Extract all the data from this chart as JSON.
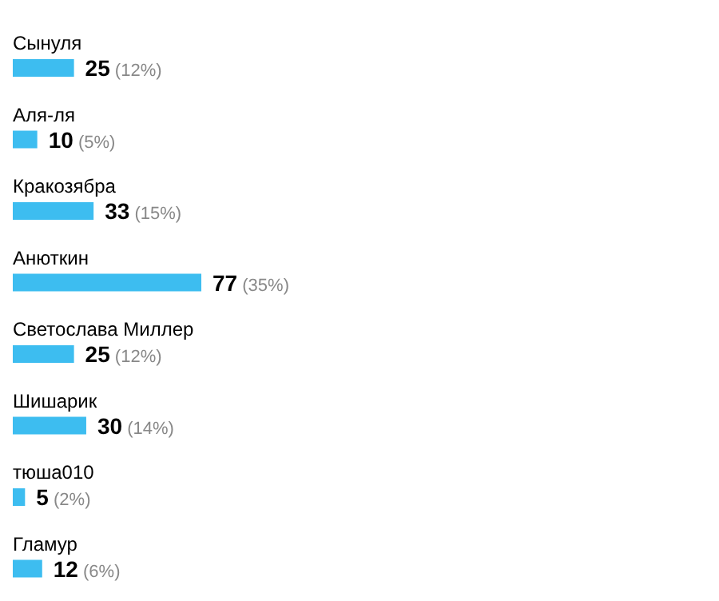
{
  "chart_data": {
    "type": "bar",
    "orientation": "horizontal",
    "categories": [
      "Сынуля",
      "Аля-ля",
      "Кракозябра",
      "Анюткин",
      "Светослава Миллер",
      "Шишарик",
      "тюша010",
      "Гламур"
    ],
    "values": [
      25,
      10,
      33,
      77,
      25,
      30,
      5,
      12
    ],
    "value_labels": [
      "25 (12%)",
      "10 (5%)",
      "33 (15%)",
      "77 (35%)",
      "25 (12%)",
      "30 (14%)",
      "5 (2%)",
      "12 (6%)"
    ],
    "color": "#3dbdf0"
  }
}
